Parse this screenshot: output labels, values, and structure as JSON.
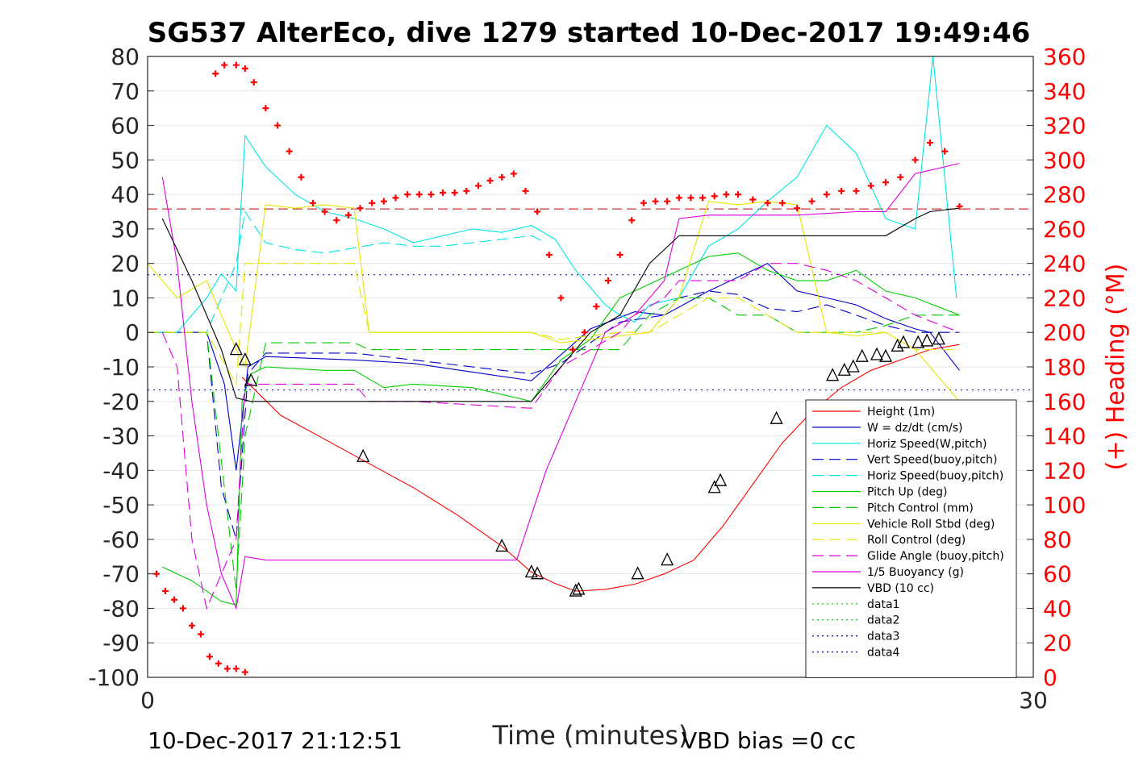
{
  "chart_data": {
    "type": "line",
    "title": "SG537 AlterEco, dive 1279 started 10-Dec-2017 19:49:46",
    "xlabel": "Time (minutes)",
    "ylabel_right": "(+) Heading (°M)",
    "footer_left": "10-Dec-2017 21:12:51",
    "footer_right": "VBD bias =0 cc",
    "xlim": [
      0,
      30
    ],
    "ylim_left": [
      -100,
      80
    ],
    "ylim_right": [
      0,
      360
    ],
    "x_ticks": [
      "0",
      "30"
    ],
    "y_ticks_left": [
      "80",
      "70",
      "60",
      "50",
      "40",
      "30",
      "20",
      "10",
      "0",
      "-10",
      "-20",
      "-30",
      "-40",
      "-50",
      "-60",
      "-70",
      "-80",
      "-90",
      "-100"
    ],
    "y_ticks_right": [
      "360",
      "340",
      "320",
      "300",
      "280",
      "260",
      "240",
      "220",
      "200",
      "180",
      "160",
      "140",
      "120",
      "100",
      "80",
      "60",
      "40",
      "20",
      "0"
    ],
    "grid": true,
    "legend_position": "lower-right",
    "reference_lines": [
      {
        "y": 35.8,
        "color": "#bb0000",
        "style": "dash"
      },
      {
        "y": 16.7,
        "color": "#0000aa",
        "style": "dot"
      },
      {
        "y": -16.7,
        "color": "#0000aa",
        "style": "dot"
      }
    ],
    "series": [
      {
        "name": "Height (1m)",
        "color": "#ff0000",
        "style": "solid",
        "x": [
          3.2,
          4.5,
          6,
          7.5,
          9,
          10.5,
          12,
          13,
          13.8,
          14.5,
          15.5,
          16.5,
          17.5,
          18.5,
          19.5,
          20.5,
          21.5,
          22.5,
          23.5,
          24.5,
          25.5,
          26.5,
          27.5
        ],
        "y": [
          -13,
          -24,
          -31,
          -38,
          -45,
          -53,
          -62,
          -69.5,
          -72.8,
          -75,
          -74.5,
          -73,
          -70,
          -66,
          -56,
          -44,
          -32,
          -23,
          -16,
          -11,
          -8,
          -5,
          -3.5
        ]
      },
      {
        "name": "W = dz/dt (cm/s)",
        "color": "#0000cc",
        "style": "solid",
        "x": [
          0,
          1,
          2,
          2.6,
          3,
          3.4,
          4,
          7,
          9,
          13,
          15,
          16.5,
          17.5,
          19,
          20,
          21,
          22,
          23,
          24,
          25,
          26,
          26.5,
          27.5
        ],
        "y": [
          0,
          0,
          0,
          -15,
          -40,
          -10,
          -7,
          -8,
          -9,
          -14,
          1,
          6,
          5,
          12,
          16,
          20,
          12,
          10,
          8,
          4,
          1,
          0,
          -11
        ]
      },
      {
        "name": "Horiz Speed(W,pitch)",
        "color": "#00e5e5",
        "style": "solid",
        "x": [
          0,
          1,
          2,
          2.5,
          3,
          3.3,
          4,
          5,
          6,
          7,
          8,
          9,
          10,
          11,
          12,
          13,
          13.8,
          14.5,
          15.5,
          16,
          16.5,
          17,
          18,
          19,
          20,
          21,
          22,
          23,
          24,
          25,
          26,
          26.6,
          27,
          27.4
        ],
        "y": [
          0,
          0,
          10,
          17,
          12,
          57,
          48,
          40,
          35,
          33,
          30,
          26,
          28,
          30,
          29,
          31,
          27,
          18,
          8,
          5,
          3,
          8,
          10,
          25,
          30,
          38,
          45,
          60,
          52,
          33,
          30,
          80,
          45,
          10
        ]
      },
      {
        "name": "Vert Speed(buoy,pitch)",
        "color": "#0000cc",
        "style": "dash",
        "x": [
          0,
          1,
          2,
          2.5,
          3,
          3.4,
          4,
          7,
          9,
          13,
          14,
          16,
          17.5,
          18,
          19,
          20,
          21,
          22,
          23,
          24,
          25,
          26,
          27.5
        ],
        "y": [
          0,
          0,
          0,
          -45,
          -60,
          -12,
          -6,
          -6,
          -8,
          -12,
          -9,
          3,
          5,
          10,
          12,
          11,
          7,
          6,
          8,
          5,
          2,
          0,
          0
        ]
      },
      {
        "name": "Horiz Speed(buoy,pitch)",
        "color": "#00e5e5",
        "style": "dash",
        "x": [
          0,
          2,
          2.5,
          3,
          3.3,
          4,
          5,
          6,
          8,
          9,
          10,
          11,
          12,
          13,
          13.5
        ],
        "y": [
          0,
          0,
          10,
          20,
          35,
          26,
          24,
          23,
          26,
          25,
          25,
          26,
          27,
          28,
          26
        ]
      },
      {
        "name": "Pitch Up (deg)",
        "color": "#00cc00",
        "style": "solid",
        "x": [
          0.5,
          1,
          1.5,
          2,
          2.5,
          3,
          3.2,
          3.5,
          4,
          6,
          7,
          8,
          9,
          11,
          13,
          14,
          15,
          16,
          17,
          18,
          19,
          20,
          21,
          22,
          23,
          24,
          25,
          26,
          27.5
        ],
        "y": [
          -68,
          -70,
          -72,
          -75,
          -78,
          -79,
          -20,
          -12,
          -10,
          -11,
          -11,
          -16,
          -15,
          -16,
          -20,
          -8,
          -2,
          10,
          14,
          18,
          22,
          23,
          18,
          15,
          15,
          18,
          12,
          10,
          5
        ]
      },
      {
        "name": "Pitch Control (mm)",
        "color": "#00cc00",
        "style": "dash",
        "x": [
          0,
          2,
          3,
          3.3,
          4,
          7,
          7.5,
          9,
          13,
          14,
          16,
          17,
          18,
          19,
          20,
          21,
          22,
          23,
          24,
          25,
          26,
          27.5
        ],
        "y": [
          0,
          0,
          -75,
          -30,
          -3,
          -3,
          -5,
          -5,
          -5,
          -5,
          -5,
          5,
          10,
          10,
          5,
          5,
          0,
          0,
          0,
          2,
          5,
          5
        ]
      },
      {
        "name": "Vehicle Roll Stbd (deg)",
        "color": "#e5e500",
        "style": "solid",
        "x": [
          0,
          1,
          2,
          2.5,
          3,
          3.3,
          4,
          5,
          6,
          7,
          7.5,
          9,
          11,
          13,
          14,
          15,
          16,
          17,
          18,
          19,
          20,
          21,
          22,
          23,
          24,
          25,
          26,
          27.5
        ],
        "y": [
          20,
          10,
          15,
          5,
          -5,
          -10,
          37,
          36,
          37,
          36,
          0,
          0,
          0,
          0,
          -3,
          -2,
          -1,
          0,
          10,
          38,
          37,
          38,
          37,
          0,
          -1,
          0,
          -5,
          -20
        ]
      },
      {
        "name": "Roll Control (deg)",
        "color": "#e5e500",
        "style": "dash",
        "x": [
          0,
          2,
          3,
          3.3,
          4,
          7,
          7.5,
          9,
          13,
          14,
          16,
          17,
          18,
          19,
          20,
          21,
          22,
          23,
          24,
          25,
          26,
          27.5
        ],
        "y": [
          0,
          0,
          -15,
          20,
          20,
          20,
          0,
          0,
          0,
          -2,
          0,
          0,
          5,
          10,
          10,
          5,
          0,
          0,
          0,
          0,
          -5,
          -5
        ]
      },
      {
        "name": "Glide Angle (buoy,pitch)",
        "color": "#dd00dd",
        "style": "dash",
        "x": [
          0.5,
          1,
          1.5,
          2,
          2.5,
          3,
          3.3,
          4,
          7,
          7.5,
          9,
          13,
          14,
          16,
          16.5,
          17.5,
          18,
          19,
          20,
          21,
          22,
          23,
          24,
          25,
          26,
          27.5
        ],
        "y": [
          0,
          -10,
          -60,
          -80,
          -70,
          -60,
          -15,
          -15,
          -15,
          -20,
          -20,
          -22,
          -10,
          0,
          5,
          10,
          15,
          15,
          15,
          20,
          20,
          18,
          15,
          10,
          5,
          0
        ]
      },
      {
        "name": "1/5 Buoyancy (g)",
        "color": "#dd00dd",
        "style": "solid",
        "x": [
          0.5,
          1,
          1.5,
          2,
          2.5,
          3,
          3.3,
          4,
          7,
          9,
          11,
          12.5,
          13.5,
          14.5,
          15.5,
          16.5,
          17.5,
          18,
          19,
          20,
          21,
          22,
          24,
          25,
          26,
          26.5,
          27,
          27.5
        ],
        "y": [
          45,
          20,
          -20,
          -50,
          -70,
          -80,
          -65,
          -66,
          -66,
          -66,
          -66,
          -66,
          -40,
          -20,
          0,
          5,
          15,
          33,
          34,
          34,
          34,
          34,
          35,
          35,
          46,
          47,
          48,
          49
        ]
      },
      {
        "name": "VBD (10 cc)",
        "color": "#000000",
        "style": "solid",
        "x": [
          0.5,
          1.5,
          2.5,
          3,
          3.5,
          5,
          7,
          9,
          11,
          13,
          14,
          15,
          16,
          17,
          18,
          19,
          20,
          22,
          24,
          25,
          26,
          26.5,
          27.5
        ],
        "y": [
          33,
          15,
          -5,
          -19,
          -20,
          -20,
          -20,
          -20,
          -20,
          -20,
          -10,
          0,
          5,
          20,
          28,
          28,
          28,
          28,
          28,
          28,
          33,
          35,
          36
        ]
      },
      {
        "name": "data1",
        "color": "#00cc00",
        "style": "dot",
        "x": [],
        "y": []
      },
      {
        "name": "data2",
        "color": "#00cc00",
        "style": "dot",
        "x": [],
        "y": []
      },
      {
        "name": "data3",
        "color": "#0000aa",
        "style": "dot",
        "x": [],
        "y": []
      },
      {
        "name": "data4",
        "color": "#0000aa",
        "style": "dot",
        "x": [],
        "y": []
      }
    ],
    "heading_series": {
      "color": "#ff0000",
      "marker": "+",
      "x": [
        0.3,
        0.6,
        0.9,
        1.2,
        1.5,
        1.8,
        2.1,
        2.4,
        2.7,
        3.0,
        3.3,
        2.3,
        2.6,
        3.0,
        3.3,
        3.6,
        4.0,
        4.4,
        4.8,
        5.2,
        5.6,
        6.0,
        6.4,
        6.8,
        7.2,
        7.6,
        8.0,
        8.4,
        8.8,
        9.2,
        9.6,
        10.0,
        10.4,
        10.8,
        11.2,
        11.6,
        12.0,
        12.4,
        12.8,
        13.2,
        13.6,
        14.0,
        14.4,
        14.8,
        15.2,
        15.6,
        16.0,
        16.4,
        16.8,
        17.2,
        17.6,
        18.0,
        18.4,
        18.8,
        19.2,
        19.6,
        20.0,
        20.5,
        21.0,
        21.5,
        22.0,
        22.5,
        23.0,
        23.5,
        24.0,
        24.5,
        25.0,
        25.5,
        26.0,
        26.5,
        27.0,
        27.5
      ],
      "y": [
        60,
        50,
        45,
        40,
        30,
        25,
        12,
        8,
        5,
        5,
        3,
        350,
        355,
        355,
        353,
        345,
        330,
        320,
        305,
        290,
        275,
        270,
        265,
        268,
        272,
        275,
        276,
        278,
        280,
        280,
        280,
        281,
        281,
        282,
        285,
        288,
        290,
        292,
        282,
        270,
        245,
        220,
        190,
        200,
        215,
        230,
        245,
        265,
        275,
        276,
        276,
        278,
        278,
        278,
        279,
        280,
        280,
        277,
        275,
        275,
        272,
        276,
        280,
        282,
        282,
        285,
        287,
        290,
        300,
        310,
        305,
        273
      ]
    },
    "markers": {
      "x": [
        3.0,
        3.3,
        3.5,
        7.3,
        12.0,
        13.0,
        13.2,
        14.5,
        14.6,
        16.6,
        17.6,
        19.2,
        19.4,
        21.3,
        23.2,
        23.6,
        23.9,
        24.2,
        24.7,
        25.0,
        25.4,
        25.6,
        26.1,
        26.4,
        26.8
      ],
      "y": [
        -5,
        -8,
        -14,
        -36,
        -62,
        -69.5,
        -70,
        -75,
        -74.5,
        -70,
        -66,
        -45,
        -43,
        -25,
        -12.5,
        -11,
        -10,
        -7,
        -6.5,
        -7,
        -4,
        -3,
        -3,
        -2.5,
        -2
      ]
    }
  }
}
